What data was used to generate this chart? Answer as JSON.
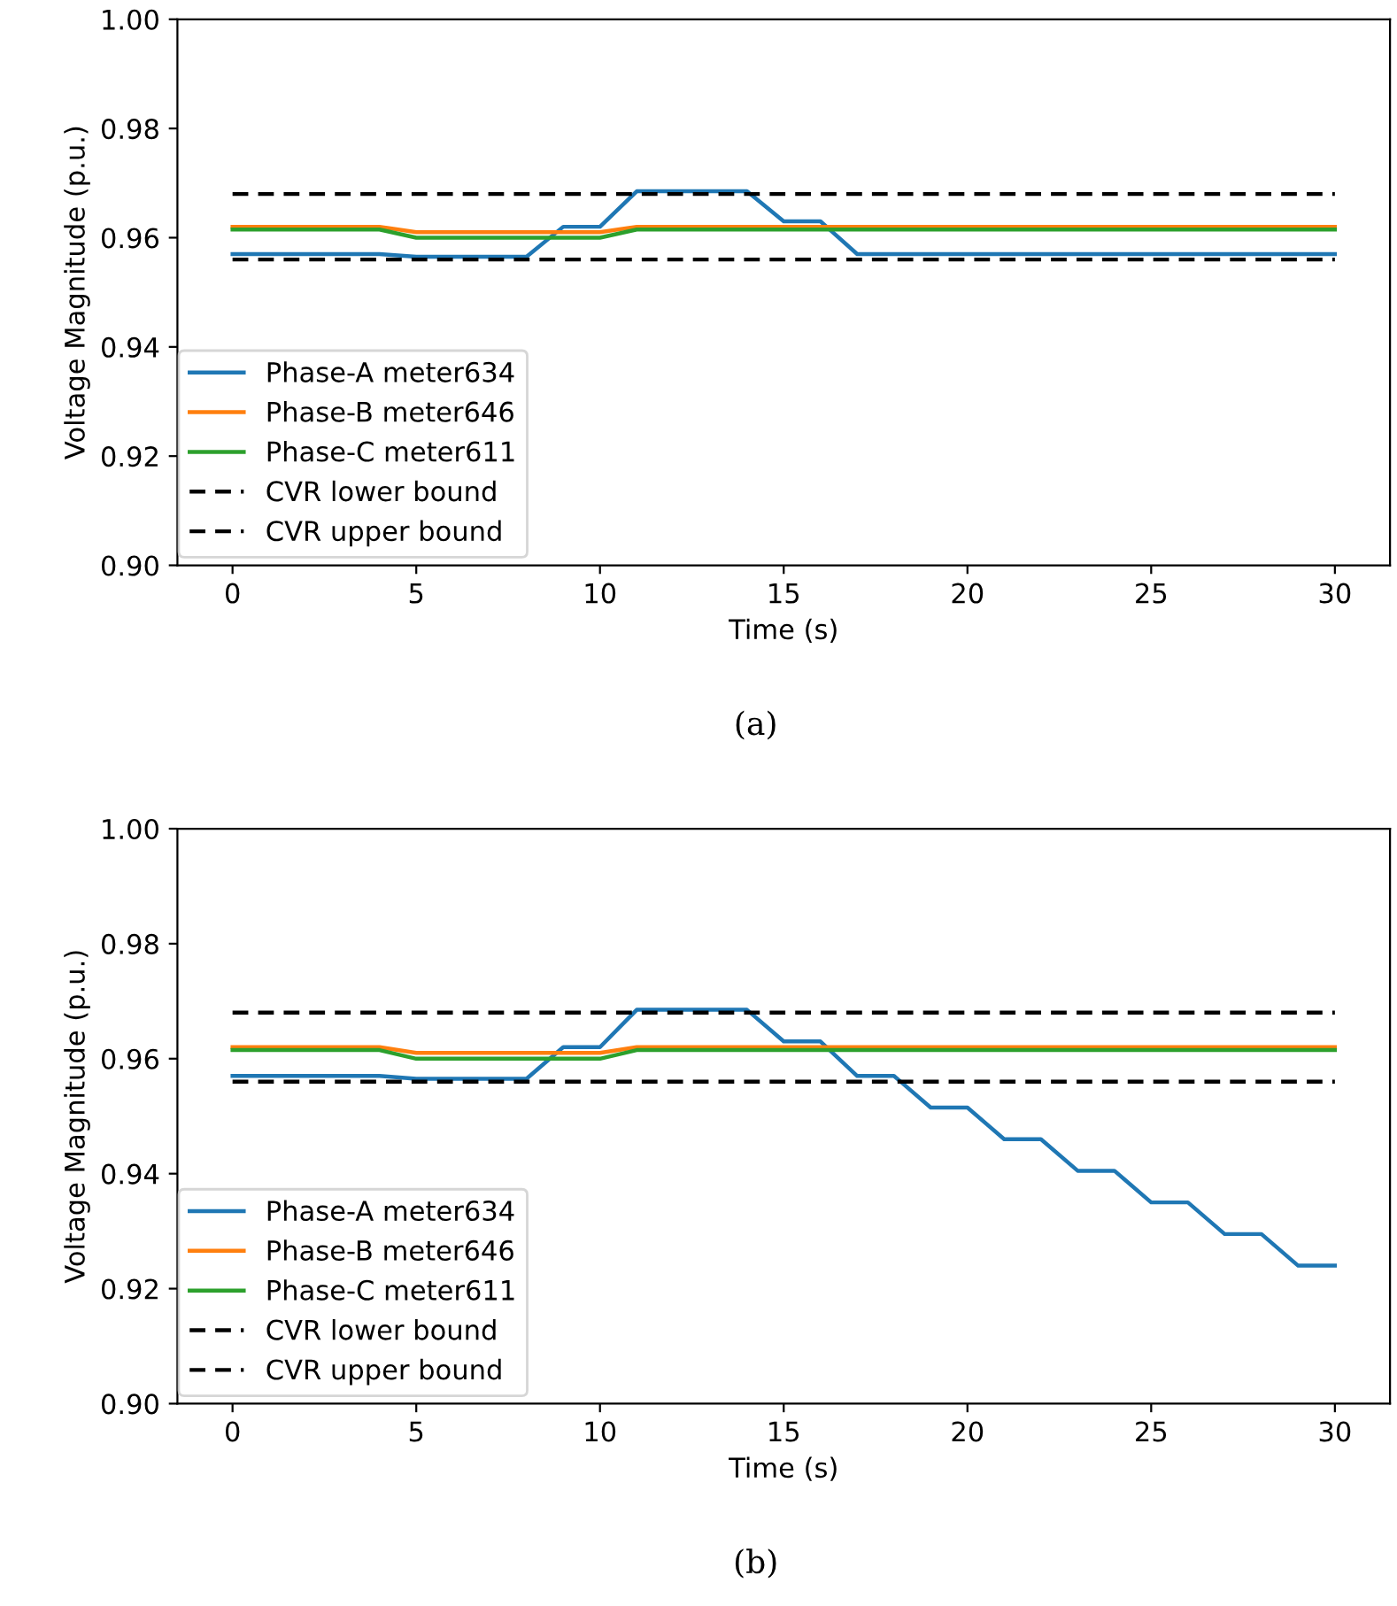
{
  "chart_data": [
    {
      "type": "line",
      "xlabel": "Time (s)",
      "ylabel": "Voltage Magnitude (p.u.)",
      "annotations": [
        "(a)"
      ],
      "x": [
        0,
        1,
        2,
        3,
        4,
        5,
        6,
        7,
        8,
        9,
        10,
        11,
        12,
        13,
        14,
        15,
        16,
        17,
        18,
        19,
        20,
        21,
        22,
        23,
        24,
        25,
        26,
        27,
        28,
        29,
        30
      ],
      "xlim": [
        -1.5,
        31.5
      ],
      "xticks": [
        0,
        5,
        10,
        15,
        20,
        25,
        30
      ],
      "ylim": [
        0.9,
        1.0
      ],
      "yticks": [
        {
          "value": 0.9,
          "label": "0.90"
        },
        {
          "value": 0.92,
          "label": "0.92"
        },
        {
          "value": 0.94,
          "label": "0.94"
        },
        {
          "value": 0.96,
          "label": "0.96"
        },
        {
          "value": 0.98,
          "label": "0.98"
        },
        {
          "value": 1.0,
          "label": "1.00"
        }
      ],
      "grid": false,
      "legend": "lower left",
      "marker": "none",
      "series": [
        {
          "name": "Phase-A meter634",
          "color": "#1f77b4",
          "line_style": "solid",
          "values": [
            0.957,
            0.957,
            0.957,
            0.957,
            0.957,
            0.9565,
            0.9565,
            0.9565,
            0.9565,
            0.962,
            0.962,
            0.9685,
            0.9685,
            0.9685,
            0.9685,
            0.963,
            0.963,
            0.957,
            0.957,
            0.957,
            0.957,
            0.957,
            0.957,
            0.957,
            0.957,
            0.957,
            0.957,
            0.957,
            0.957,
            0.957,
            0.957
          ]
        },
        {
          "name": "Phase-B meter646",
          "color": "#ff7f0e",
          "line_style": "solid",
          "values": [
            0.962,
            0.962,
            0.962,
            0.962,
            0.962,
            0.961,
            0.961,
            0.961,
            0.961,
            0.961,
            0.961,
            0.962,
            0.962,
            0.962,
            0.962,
            0.962,
            0.962,
            0.962,
            0.962,
            0.962,
            0.962,
            0.962,
            0.962,
            0.962,
            0.962,
            0.962,
            0.962,
            0.962,
            0.962,
            0.962,
            0.962
          ]
        },
        {
          "name": "Phase-C meter611",
          "color": "#2ca02c",
          "line_style": "solid",
          "values": [
            0.9615,
            0.9615,
            0.9615,
            0.9615,
            0.9615,
            0.96,
            0.96,
            0.96,
            0.96,
            0.96,
            0.96,
            0.9615,
            0.9615,
            0.9615,
            0.9615,
            0.9615,
            0.9615,
            0.9615,
            0.9615,
            0.9615,
            0.9615,
            0.9615,
            0.9615,
            0.9615,
            0.9615,
            0.9615,
            0.9615,
            0.9615,
            0.9615,
            0.9615,
            0.9615
          ]
        },
        {
          "name": "CVR lower bound",
          "color": "#000000",
          "line_style": "dashed",
          "values": [
            0.956,
            0.956,
            0.956,
            0.956,
            0.956,
            0.956,
            0.956,
            0.956,
            0.956,
            0.956,
            0.956,
            0.956,
            0.956,
            0.956,
            0.956,
            0.956,
            0.956,
            0.956,
            0.956,
            0.956,
            0.956,
            0.956,
            0.956,
            0.956,
            0.956,
            0.956,
            0.956,
            0.956,
            0.956,
            0.956,
            0.956
          ]
        },
        {
          "name": "CVR upper bound",
          "color": "#000000",
          "line_style": "dashed",
          "values": [
            0.968,
            0.968,
            0.968,
            0.968,
            0.968,
            0.968,
            0.968,
            0.968,
            0.968,
            0.968,
            0.968,
            0.968,
            0.968,
            0.968,
            0.968,
            0.968,
            0.968,
            0.968,
            0.968,
            0.968,
            0.968,
            0.968,
            0.968,
            0.968,
            0.968,
            0.968,
            0.968,
            0.968,
            0.968,
            0.968,
            0.968
          ]
        }
      ]
    },
    {
      "type": "line",
      "xlabel": "Time (s)",
      "ylabel": "Voltage Magnitude (p.u.)",
      "annotations": [
        "(b)"
      ],
      "x": [
        0,
        1,
        2,
        3,
        4,
        5,
        6,
        7,
        8,
        9,
        10,
        11,
        12,
        13,
        14,
        15,
        16,
        17,
        18,
        19,
        20,
        21,
        22,
        23,
        24,
        25,
        26,
        27,
        28,
        29,
        30
      ],
      "xlim": [
        -1.5,
        31.5
      ],
      "xticks": [
        0,
        5,
        10,
        15,
        20,
        25,
        30
      ],
      "ylim": [
        0.9,
        1.0
      ],
      "yticks": [
        {
          "value": 0.9,
          "label": "0.90"
        },
        {
          "value": 0.92,
          "label": "0.92"
        },
        {
          "value": 0.94,
          "label": "0.94"
        },
        {
          "value": 0.96,
          "label": "0.96"
        },
        {
          "value": 0.98,
          "label": "0.98"
        },
        {
          "value": 1.0,
          "label": "1.00"
        }
      ],
      "grid": false,
      "legend": "lower left",
      "marker": "none",
      "series": [
        {
          "name": "Phase-A meter634",
          "color": "#1f77b4",
          "line_style": "solid",
          "values": [
            0.957,
            0.957,
            0.957,
            0.957,
            0.957,
            0.9565,
            0.9565,
            0.9565,
            0.9565,
            0.962,
            0.962,
            0.9685,
            0.9685,
            0.9685,
            0.9685,
            0.963,
            0.963,
            0.957,
            0.957,
            0.9515,
            0.9515,
            0.946,
            0.946,
            0.9405,
            0.9405,
            0.935,
            0.935,
            0.9295,
            0.9295,
            0.924,
            0.924
          ]
        },
        {
          "name": "Phase-B meter646",
          "color": "#ff7f0e",
          "line_style": "solid",
          "values": [
            0.962,
            0.962,
            0.962,
            0.962,
            0.962,
            0.961,
            0.961,
            0.961,
            0.961,
            0.961,
            0.961,
            0.962,
            0.962,
            0.962,
            0.962,
            0.962,
            0.962,
            0.962,
            0.962,
            0.962,
            0.962,
            0.962,
            0.962,
            0.962,
            0.962,
            0.962,
            0.962,
            0.962,
            0.962,
            0.962,
            0.962
          ]
        },
        {
          "name": "Phase-C meter611",
          "color": "#2ca02c",
          "line_style": "solid",
          "values": [
            0.9615,
            0.9615,
            0.9615,
            0.9615,
            0.9615,
            0.96,
            0.96,
            0.96,
            0.96,
            0.96,
            0.96,
            0.9615,
            0.9615,
            0.9615,
            0.9615,
            0.9615,
            0.9615,
            0.9615,
            0.9615,
            0.9615,
            0.9615,
            0.9615,
            0.9615,
            0.9615,
            0.9615,
            0.9615,
            0.9615,
            0.9615,
            0.9615,
            0.9615,
            0.9615
          ]
        },
        {
          "name": "CVR lower bound",
          "color": "#000000",
          "line_style": "dashed",
          "values": [
            0.956,
            0.956,
            0.956,
            0.956,
            0.956,
            0.956,
            0.956,
            0.956,
            0.956,
            0.956,
            0.956,
            0.956,
            0.956,
            0.956,
            0.956,
            0.956,
            0.956,
            0.956,
            0.956,
            0.956,
            0.956,
            0.956,
            0.956,
            0.956,
            0.956,
            0.956,
            0.956,
            0.956,
            0.956,
            0.956,
            0.956
          ]
        },
        {
          "name": "CVR upper bound",
          "color": "#000000",
          "line_style": "dashed",
          "values": [
            0.968,
            0.968,
            0.968,
            0.968,
            0.968,
            0.968,
            0.968,
            0.968,
            0.968,
            0.968,
            0.968,
            0.968,
            0.968,
            0.968,
            0.968,
            0.968,
            0.968,
            0.968,
            0.968,
            0.968,
            0.968,
            0.968,
            0.968,
            0.968,
            0.968,
            0.968,
            0.968,
            0.968,
            0.968,
            0.968,
            0.968
          ]
        }
      ]
    }
  ]
}
